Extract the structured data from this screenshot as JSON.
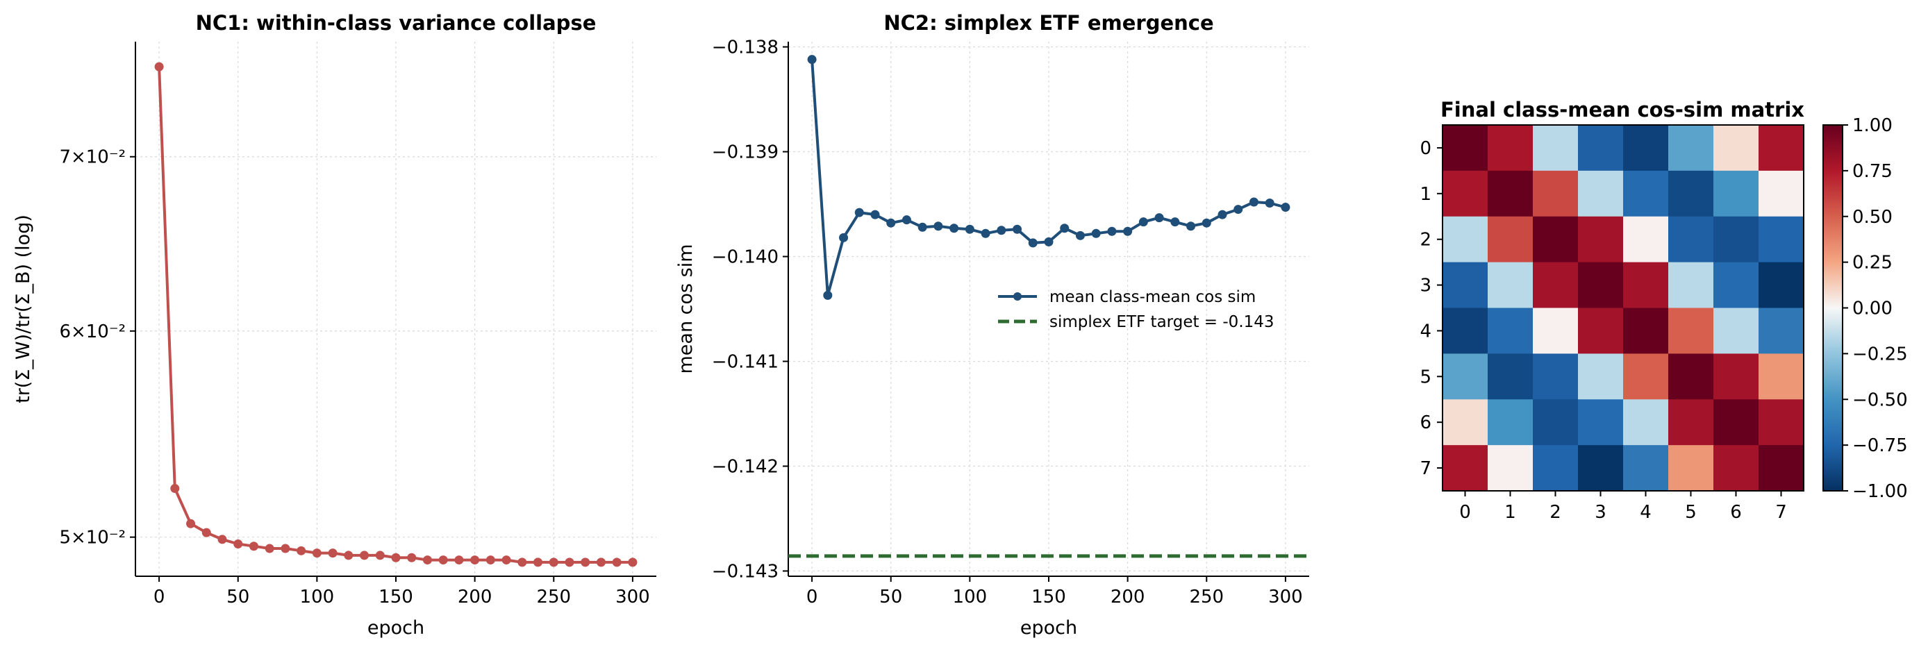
{
  "chart_data": [
    {
      "type": "line",
      "title": "NC1: within-class variance collapse",
      "xlabel": "epoch",
      "ylabel": "tr(Σ_W)/tr(Σ_B) (log)",
      "yscale": "log",
      "grid": true,
      "color": "#c0504d",
      "xlim": [
        -15,
        315
      ],
      "ylim": [
        0.0483,
        0.0775
      ],
      "xticks": [
        0,
        50,
        100,
        150,
        200,
        250,
        300
      ],
      "yticks": [
        {
          "value": 0.07,
          "label": "7×10⁻²"
        },
        {
          "value": 0.06,
          "label": "6×10⁻²"
        },
        {
          "value": 0.05,
          "label": "5×10⁻²"
        }
      ],
      "x": [
        0,
        10,
        20,
        30,
        40,
        50,
        60,
        70,
        80,
        90,
        100,
        110,
        120,
        130,
        140,
        150,
        160,
        170,
        180,
        190,
        200,
        210,
        220,
        230,
        240,
        250,
        260,
        270,
        280,
        290,
        300
      ],
      "y": [
        0.0758,
        0.0522,
        0.0506,
        0.0502,
        0.0499,
        0.0497,
        0.0496,
        0.0495,
        0.0495,
        0.0494,
        0.0493,
        0.0493,
        0.0492,
        0.0492,
        0.0492,
        0.0491,
        0.0491,
        0.049,
        0.049,
        0.049,
        0.049,
        0.049,
        0.049,
        0.0489,
        0.0489,
        0.0489,
        0.0489,
        0.0489,
        0.0489,
        0.0489,
        0.0489
      ]
    },
    {
      "type": "line",
      "title": "NC2: simplex ETF emergence",
      "xlabel": "epoch",
      "ylabel": "mean cos sim",
      "grid": true,
      "xlim": [
        -15,
        315
      ],
      "ylim": [
        -0.14305,
        -0.13795
      ],
      "xticks": [
        0,
        50,
        100,
        150,
        200,
        250,
        300
      ],
      "yticks": [
        {
          "value": -0.138,
          "label": "−0.138"
        },
        {
          "value": -0.139,
          "label": "−0.139"
        },
        {
          "value": -0.14,
          "label": "−0.140"
        },
        {
          "value": -0.141,
          "label": "−0.141"
        },
        {
          "value": -0.142,
          "label": "−0.142"
        },
        {
          "value": -0.143,
          "label": "−0.143"
        }
      ],
      "legend_position": "center-right",
      "series": [
        {
          "name": "mean class-mean cos sim",
          "color": "#1f4e79",
          "x": [
            0,
            10,
            20,
            30,
            40,
            50,
            60,
            70,
            80,
            90,
            100,
            110,
            120,
            130,
            140,
            150,
            160,
            170,
            180,
            190,
            200,
            210,
            220,
            230,
            240,
            250,
            260,
            270,
            280,
            290,
            300
          ],
          "y": [
            -0.13812,
            -0.14037,
            -0.13982,
            -0.13958,
            -0.1396,
            -0.13968,
            -0.13965,
            -0.13972,
            -0.13971,
            -0.13973,
            -0.13974,
            -0.13978,
            -0.13975,
            -0.13974,
            -0.13987,
            -0.13986,
            -0.13973,
            -0.1398,
            -0.13978,
            -0.13976,
            -0.13976,
            -0.13967,
            -0.13963,
            -0.13967,
            -0.13971,
            -0.13968,
            -0.1396,
            -0.13955,
            -0.13948,
            -0.13949,
            -0.13953
          ]
        },
        {
          "name": "simplex ETF target = -0.143",
          "color": "#2e6b30",
          "style": "dashed",
          "value": -0.142857
        }
      ]
    },
    {
      "type": "heatmap",
      "title": "Final class-mean cos-sim matrix",
      "colormap": "RdBu_r",
      "vmin": -1.0,
      "vmax": 1.0,
      "x_ticks": [
        "0",
        "1",
        "2",
        "3",
        "4",
        "5",
        "6",
        "7"
      ],
      "y_ticks": [
        "0",
        "1",
        "2",
        "3",
        "4",
        "5",
        "6",
        "7"
      ],
      "colorbar_ticks": [
        {
          "value": 1.0,
          "label": "1.00"
        },
        {
          "value": 0.75,
          "label": "0.75"
        },
        {
          "value": 0.5,
          "label": "0.50"
        },
        {
          "value": 0.25,
          "label": "0.25"
        },
        {
          "value": 0.0,
          "label": "0.00"
        },
        {
          "value": -0.25,
          "label": "−0.25"
        },
        {
          "value": -0.5,
          "label": "−0.50"
        },
        {
          "value": -0.75,
          "label": "−0.75"
        },
        {
          "value": -1.0,
          "label": "−1.00"
        }
      ],
      "matrix": [
        [
          1.0,
          0.78,
          -0.15,
          -0.78,
          -0.92,
          -0.42,
          0.08,
          0.78
        ],
        [
          0.78,
          1.0,
          0.58,
          -0.15,
          -0.72,
          -0.88,
          -0.5,
          0.02
        ],
        [
          -0.15,
          0.58,
          1.0,
          0.8,
          0.02,
          -0.78,
          -0.85,
          -0.75
        ],
        [
          -0.78,
          -0.15,
          0.8,
          1.0,
          0.8,
          -0.15,
          -0.72,
          -0.98
        ],
        [
          -0.92,
          -0.72,
          0.02,
          0.8,
          1.0,
          0.5,
          -0.15,
          -0.65
        ],
        [
          -0.42,
          -0.88,
          -0.78,
          -0.15,
          0.5,
          1.0,
          0.8,
          0.3
        ],
        [
          0.08,
          -0.5,
          -0.85,
          -0.72,
          -0.15,
          0.8,
          1.0,
          0.8
        ],
        [
          0.78,
          0.02,
          -0.75,
          -0.98,
          -0.65,
          0.3,
          0.8,
          1.0
        ]
      ]
    }
  ]
}
